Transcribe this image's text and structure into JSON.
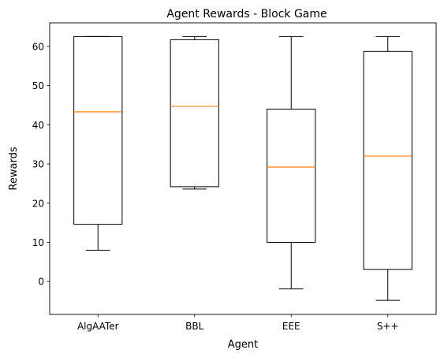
{
  "chart_data": {
    "type": "box",
    "title": "Agent Rewards - Block Game",
    "xlabel": "Agent",
    "ylabel": "Rewards",
    "ylim": [
      -8.4,
      66.0
    ],
    "yticks": [
      0,
      10,
      20,
      30,
      40,
      50,
      60
    ],
    "grid": false,
    "categories": [
      "AlgAATer",
      "BBL",
      "EEE",
      "S++"
    ],
    "boxes": [
      {
        "name": "AlgAATer",
        "whisker_low": 8.0,
        "q1": 14.6,
        "median": 43.3,
        "q3": 62.5,
        "whisker_high": 62.5
      },
      {
        "name": "BBL",
        "whisker_low": 23.6,
        "q1": 24.2,
        "median": 44.7,
        "q3": 61.7,
        "whisker_high": 62.5
      },
      {
        "name": "EEE",
        "whisker_low": -1.9,
        "q1": 10.0,
        "median": 29.2,
        "q3": 44.0,
        "whisker_high": 62.5
      },
      {
        "name": "S++",
        "whisker_low": -4.8,
        "q1": 3.1,
        "median": 32.0,
        "q3": 58.7,
        "whisker_high": 62.5
      }
    ],
    "colors": {
      "box": "#000000",
      "median": "#ff7f0e",
      "background": "#ffffff"
    }
  }
}
